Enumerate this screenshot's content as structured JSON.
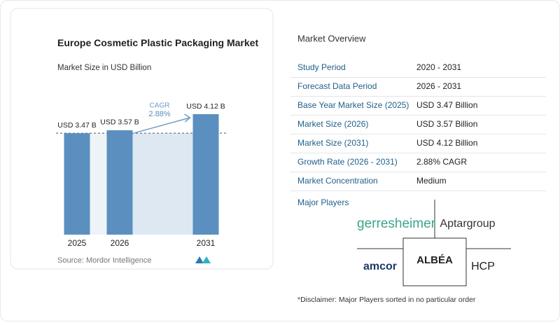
{
  "chart_data": {
    "type": "bar",
    "title": "Europe Cosmetic Plastic Packaging Market",
    "subtitle": "Market Size in USD Billion",
    "categories": [
      "2025",
      "2026",
      "2031"
    ],
    "values": [
      3.47,
      3.57,
      4.12
    ],
    "value_labels": [
      "USD 3.47 B",
      "USD 3.57 B",
      "USD 4.12 B"
    ],
    "color": "#5b8fc0",
    "annotation": {
      "label": "CAGR",
      "value": "2.88%"
    },
    "source": "Source: Mordor Intelligence"
  },
  "overview": {
    "title": "Market Overview",
    "rows": [
      [
        "Study Period",
        "2020 - 2031"
      ],
      [
        "Forecast Data Period",
        "2026 - 2031"
      ],
      [
        "Base Year Market Size (2025)",
        "USD 3.47 Billion"
      ],
      [
        "Market Size (2026)",
        "USD 3.57 Billion"
      ],
      [
        "Market Size (2031)",
        "USD 4.12 Billion"
      ],
      [
        "Growth Rate (2026 - 2031)",
        "2.88% CAGR"
      ],
      [
        "Market Concentration",
        "Medium"
      ]
    ]
  },
  "players": {
    "title": "Major Players",
    "names": [
      "gerresheimer",
      "Aptargroup",
      "amcor",
      "ALBÉA",
      "HCP"
    ],
    "disclaimer": "*Disclaimer: Major Players sorted in no particular order"
  }
}
